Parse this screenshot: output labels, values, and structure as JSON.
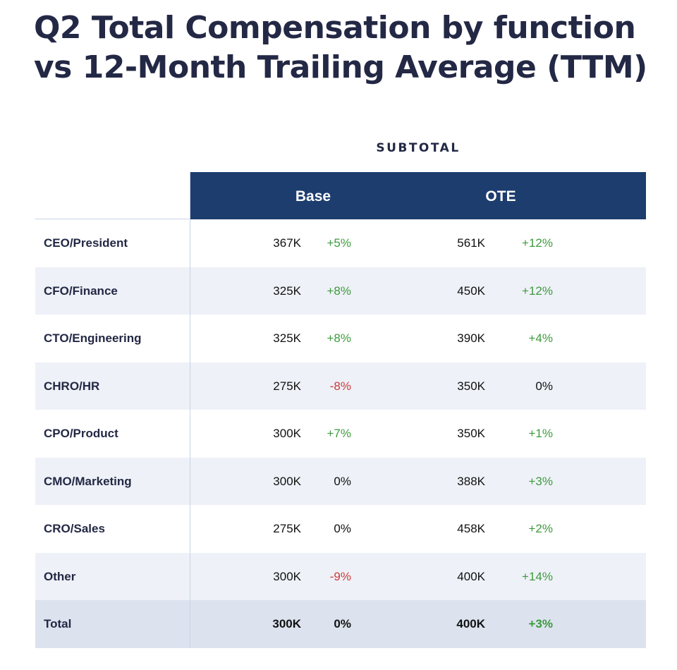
{
  "title_lines": [
    "Q2 Total Compensation by function",
    "vs 12-Month Trailing Average (TTM)"
  ],
  "group_label": "SUBTOTAL",
  "columns": {
    "base": "Base",
    "ote": "OTE"
  },
  "colors": {
    "header_band": "#1c3d6e",
    "positive": "#3e9a3e",
    "negative": "#cc3b3b",
    "row_alt": "#eef1f7",
    "row_total": "#dce3ef"
  },
  "rows": [
    {
      "label": "CEO/President",
      "base": "367K",
      "base_delta": "+5%",
      "ote": "561K",
      "ote_delta": "+12%"
    },
    {
      "label": "CFO/Finance",
      "base": "325K",
      "base_delta": "+8%",
      "ote": "450K",
      "ote_delta": "+12%"
    },
    {
      "label": "CTO/Engineering",
      "base": "325K",
      "base_delta": "+8%",
      "ote": "390K",
      "ote_delta": "+4%"
    },
    {
      "label": "CHRO/HR",
      "base": "275K",
      "base_delta": "-8%",
      "ote": "350K",
      "ote_delta": "0%"
    },
    {
      "label": "CPO/Product",
      "base": "300K",
      "base_delta": "+7%",
      "ote": "350K",
      "ote_delta": "+1%"
    },
    {
      "label": "CMO/Marketing",
      "base": "300K",
      "base_delta": "0%",
      "ote": "388K",
      "ote_delta": "+3%"
    },
    {
      "label": "CRO/Sales",
      "base": "275K",
      "base_delta": "0%",
      "ote": "458K",
      "ote_delta": "+2%"
    },
    {
      "label": "Other",
      "base": "300K",
      "base_delta": "-9%",
      "ote": "400K",
      "ote_delta": "+14%"
    },
    {
      "label": "Total",
      "base": "300K",
      "base_delta": "0%",
      "ote": "400K",
      "ote_delta": "+3%"
    }
  ],
  "chart_data": {
    "type": "table",
    "title": "Q2 Total Compensation by function vs 12-Month Trailing Average (TTM)",
    "column_group": "SUBTOTAL",
    "columns": [
      "Base",
      "OTE"
    ],
    "categories": [
      "CEO/President",
      "CFO/Finance",
      "CTO/Engineering",
      "CHRO/HR",
      "CPO/Product",
      "CMO/Marketing",
      "CRO/Sales",
      "Other",
      "Total"
    ],
    "series": [
      {
        "name": "Base",
        "values": [
          "367K",
          "325K",
          "325K",
          "275K",
          "300K",
          "300K",
          "275K",
          "300K",
          "300K"
        ],
        "deltas": [
          "+5%",
          "+8%",
          "+8%",
          "-8%",
          "+7%",
          "0%",
          "0%",
          "-9%",
          "0%"
        ]
      },
      {
        "name": "OTE",
        "values": [
          "561K",
          "450K",
          "390K",
          "350K",
          "350K",
          "388K",
          "458K",
          "400K",
          "400K"
        ],
        "deltas": [
          "+12%",
          "+12%",
          "+4%",
          "0%",
          "+1%",
          "+3%",
          "+2%",
          "+14%",
          "+3%"
        ]
      }
    ]
  }
}
